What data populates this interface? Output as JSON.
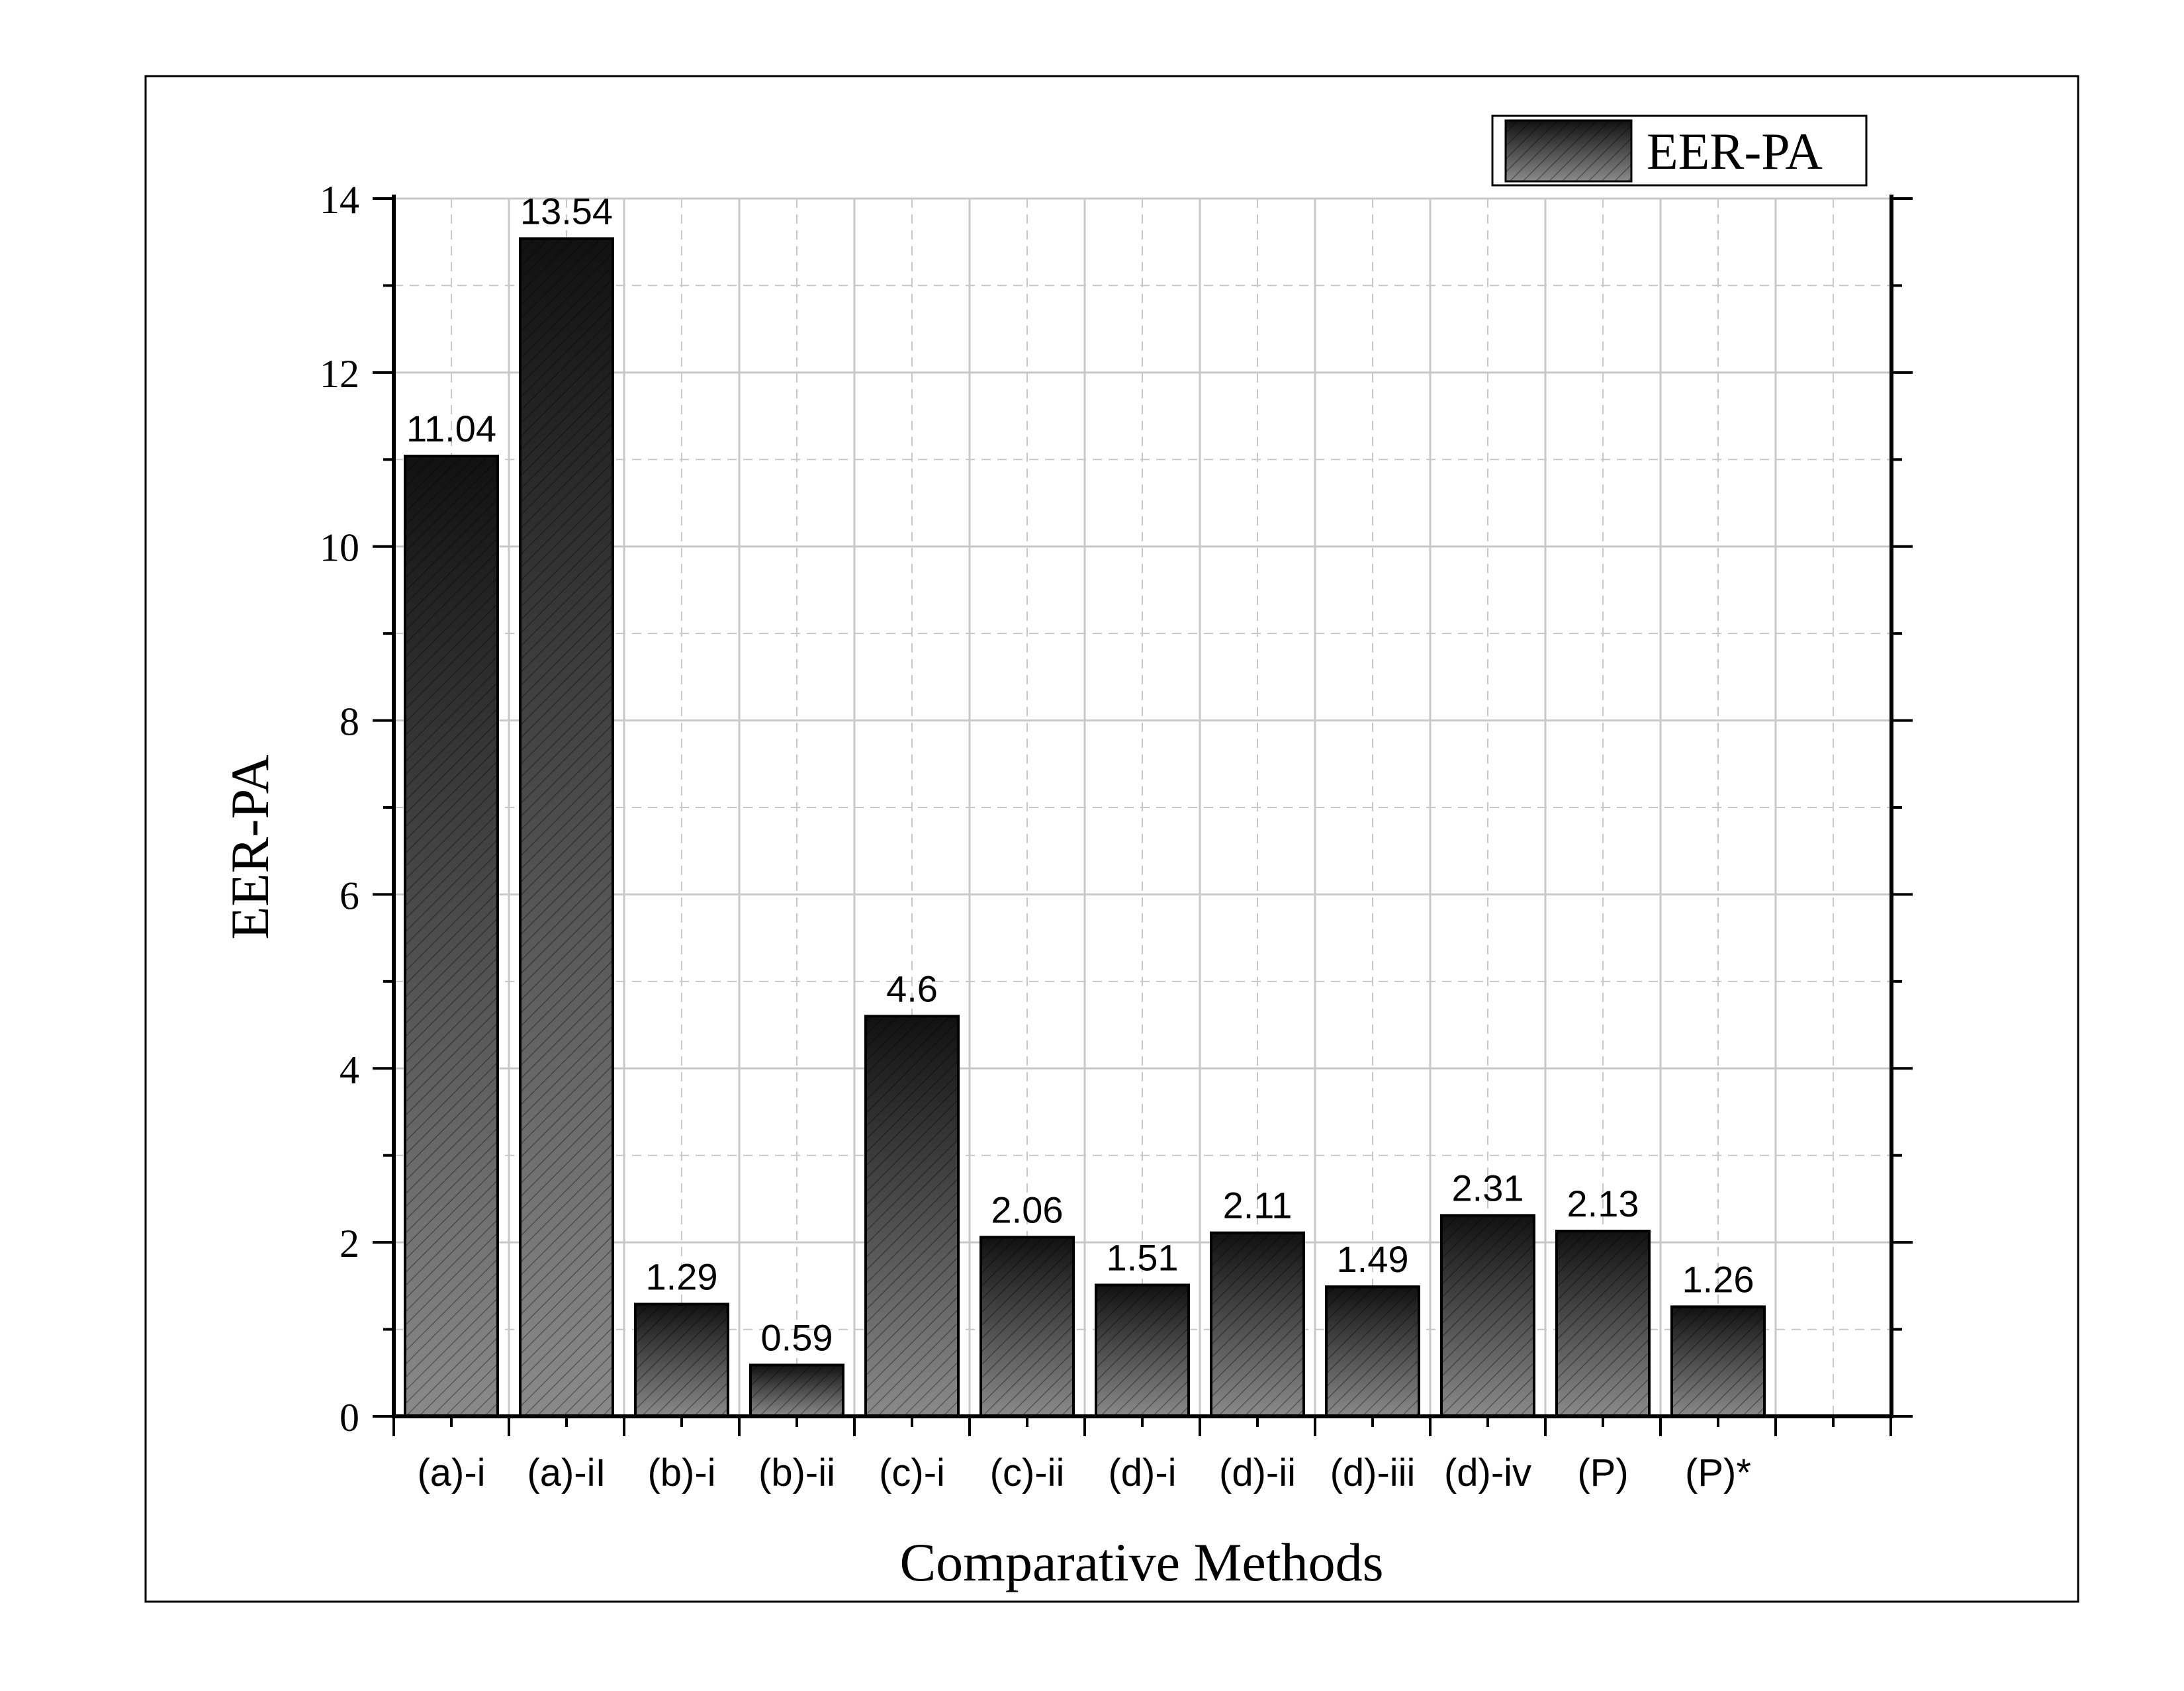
{
  "chart_data": {
    "type": "bar",
    "categories": [
      "(a)-i",
      "(a)-iI",
      "(b)-i",
      "(b)-ii",
      "(c)-i",
      "(c)-ii",
      "(d)-i",
      "(d)-ii",
      "(d)-iii",
      "(d)-iv",
      "(P)",
      "(P)*"
    ],
    "series": [
      {
        "name": "EER-PA",
        "values": [
          11.04,
          13.54,
          1.29,
          0.59,
          4.6,
          2.06,
          1.51,
          2.11,
          1.49,
          2.31,
          2.13,
          1.26
        ],
        "labels": [
          "11.04",
          "13.54",
          "1.29",
          "0.59",
          "4.6",
          "2.06",
          "1.51",
          "2.11",
          "1.49",
          "2.31",
          "2.13",
          "1.26"
        ]
      }
    ],
    "title": "",
    "xlabel": "Comparative Methods",
    "ylabel": "EER-PA",
    "ylim": [
      0,
      14
    ],
    "yticks": [
      0,
      2,
      4,
      6,
      8,
      10,
      12,
      14
    ],
    "ytick_labels": [
      "0",
      "2",
      "4",
      "6",
      "8",
      "10",
      "12",
      "14"
    ],
    "grid": true,
    "legend_position": "top-right",
    "bar_fill": "dark gradient with diagonal hatching",
    "colors": {
      "bar_top": "#111111",
      "bar_bottom": "#8a8a8a",
      "grid": "#c8c8c8",
      "axis": "#000000"
    }
  }
}
